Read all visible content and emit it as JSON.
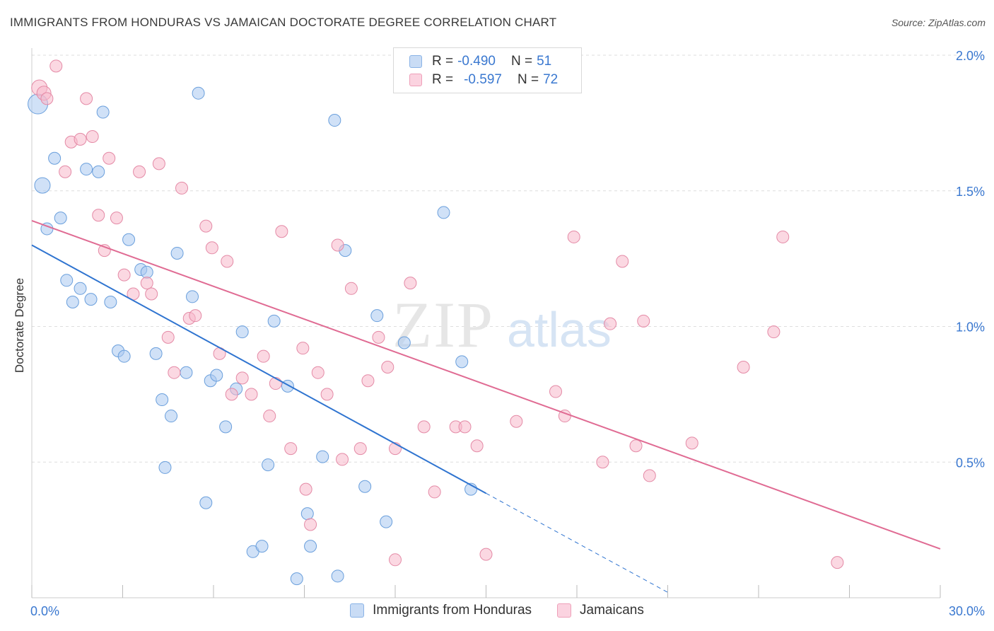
{
  "header": {
    "title": "IMMIGRANTS FROM HONDURAS VS JAMAICAN DOCTORATE DEGREE CORRELATION CHART",
    "source": "Source: ZipAtlas.com"
  },
  "legend": {
    "r_label": "R =",
    "n_label": "N =",
    "rows": [
      {
        "r": "-0.490",
        "n": "51",
        "color": "#a9c8f0"
      },
      {
        "r": "-0.597",
        "n": "72",
        "color": "#f7b8cb"
      }
    ]
  },
  "watermark": {
    "zip": "ZIP",
    "atlas": "atlas"
  },
  "chart_data": {
    "type": "scatter",
    "ylabel": "Doctorate Degree",
    "xlim": [
      0,
      30
    ],
    "ylim": [
      0,
      2.0
    ],
    "x_ticks": [
      0,
      3,
      6,
      9,
      12,
      15,
      18,
      21,
      24,
      27,
      30
    ],
    "x_tick_labels": [
      "0.0%",
      "30.0%"
    ],
    "y_tick_values": [
      0.5,
      1.0,
      1.5,
      2.0
    ],
    "y_tick_labels": [
      "0.5%",
      "1.0%",
      "1.5%",
      "2.0%"
    ],
    "grid": true,
    "series": [
      {
        "name": "Immigrants from Honduras",
        "color": "#a9c8f0",
        "stroke": "#6a9fdc",
        "line_color": "#2f74d0",
        "trend": {
          "x0": 0,
          "y0": 1.3,
          "x1": 15.0,
          "y1": 0.385,
          "dash_to_x": 21.0,
          "dash_to_y": 0.02
        },
        "points": [
          [
            0.2,
            1.82
          ],
          [
            0.35,
            1.52
          ],
          [
            0.5,
            1.36
          ],
          [
            0.75,
            1.62
          ],
          [
            0.95,
            1.4
          ],
          [
            1.15,
            1.17
          ],
          [
            1.35,
            1.09
          ],
          [
            1.6,
            1.14
          ],
          [
            1.8,
            1.58
          ],
          [
            1.95,
            1.1
          ],
          [
            2.2,
            1.57
          ],
          [
            2.35,
            1.79
          ],
          [
            2.6,
            1.09
          ],
          [
            2.85,
            0.91
          ],
          [
            3.05,
            0.89
          ],
          [
            3.2,
            1.32
          ],
          [
            3.6,
            1.21
          ],
          [
            3.8,
            1.2
          ],
          [
            4.1,
            0.9
          ],
          [
            4.3,
            0.73
          ],
          [
            4.4,
            0.48
          ],
          [
            4.6,
            0.67
          ],
          [
            4.8,
            1.27
          ],
          [
            5.1,
            0.83
          ],
          [
            5.3,
            1.11
          ],
          [
            5.5,
            1.86
          ],
          [
            5.75,
            0.35
          ],
          [
            5.9,
            0.8
          ],
          [
            6.1,
            0.82
          ],
          [
            6.4,
            0.63
          ],
          [
            6.75,
            0.77
          ],
          [
            6.95,
            0.98
          ],
          [
            7.3,
            0.17
          ],
          [
            7.6,
            0.19
          ],
          [
            7.8,
            0.49
          ],
          [
            8.0,
            1.02
          ],
          [
            8.45,
            0.78
          ],
          [
            8.75,
            0.07
          ],
          [
            9.1,
            0.31
          ],
          [
            9.2,
            0.19
          ],
          [
            9.6,
            0.52
          ],
          [
            10.1,
            0.08
          ],
          [
            10.0,
            1.76
          ],
          [
            10.35,
            1.28
          ],
          [
            11.0,
            0.41
          ],
          [
            11.4,
            1.04
          ],
          [
            11.7,
            0.28
          ],
          [
            12.3,
            0.94
          ],
          [
            13.6,
            1.42
          ],
          [
            14.2,
            0.87
          ],
          [
            14.5,
            0.4
          ]
        ]
      },
      {
        "name": "Jamaicans",
        "color": "#f7b8cb",
        "stroke": "#e48aa6",
        "line_color": "#e06b93",
        "trend": {
          "x0": 0,
          "y0": 1.39,
          "x1": 30.0,
          "y1": 0.18
        },
        "points": [
          [
            0.25,
            1.88
          ],
          [
            0.4,
            1.86
          ],
          [
            0.5,
            1.84
          ],
          [
            0.8,
            1.96
          ],
          [
            1.1,
            1.57
          ],
          [
            1.3,
            1.68
          ],
          [
            1.6,
            1.69
          ],
          [
            1.8,
            1.84
          ],
          [
            2.0,
            1.7
          ],
          [
            2.2,
            1.41
          ],
          [
            2.4,
            1.28
          ],
          [
            2.55,
            1.62
          ],
          [
            2.8,
            1.4
          ],
          [
            3.05,
            1.19
          ],
          [
            3.35,
            1.12
          ],
          [
            3.55,
            1.57
          ],
          [
            3.8,
            1.16
          ],
          [
            3.95,
            1.12
          ],
          [
            4.2,
            1.6
          ],
          [
            4.5,
            0.96
          ],
          [
            4.7,
            0.83
          ],
          [
            4.95,
            1.51
          ],
          [
            5.2,
            1.03
          ],
          [
            5.4,
            1.04
          ],
          [
            5.75,
            1.37
          ],
          [
            5.95,
            1.29
          ],
          [
            6.2,
            0.9
          ],
          [
            6.45,
            1.24
          ],
          [
            6.6,
            0.75
          ],
          [
            6.95,
            0.81
          ],
          [
            7.25,
            0.75
          ],
          [
            7.65,
            0.89
          ],
          [
            7.85,
            0.67
          ],
          [
            8.05,
            0.79
          ],
          [
            8.25,
            1.35
          ],
          [
            8.55,
            0.55
          ],
          [
            8.95,
            0.92
          ],
          [
            9.05,
            0.4
          ],
          [
            9.2,
            0.27
          ],
          [
            9.45,
            0.83
          ],
          [
            9.75,
            0.75
          ],
          [
            10.1,
            1.3
          ],
          [
            10.25,
            0.51
          ],
          [
            10.55,
            1.14
          ],
          [
            10.85,
            0.55
          ],
          [
            11.1,
            0.8
          ],
          [
            11.45,
            0.96
          ],
          [
            11.75,
            0.85
          ],
          [
            12.0,
            0.55
          ],
          [
            12.0,
            0.14
          ],
          [
            12.5,
            1.16
          ],
          [
            12.95,
            0.63
          ],
          [
            13.3,
            0.39
          ],
          [
            14.0,
            0.63
          ],
          [
            14.3,
            0.63
          ],
          [
            14.7,
            0.56
          ],
          [
            15.0,
            0.16
          ],
          [
            16.0,
            0.65
          ],
          [
            17.3,
            0.76
          ],
          [
            17.6,
            0.67
          ],
          [
            17.9,
            1.33
          ],
          [
            18.85,
            0.5
          ],
          [
            19.1,
            1.01
          ],
          [
            19.5,
            1.24
          ],
          [
            19.95,
            0.56
          ],
          [
            20.2,
            1.02
          ],
          [
            20.4,
            0.45
          ],
          [
            21.8,
            0.57
          ],
          [
            23.5,
            0.85
          ],
          [
            24.5,
            0.98
          ],
          [
            24.8,
            1.33
          ],
          [
            26.6,
            0.13
          ]
        ]
      }
    ]
  }
}
